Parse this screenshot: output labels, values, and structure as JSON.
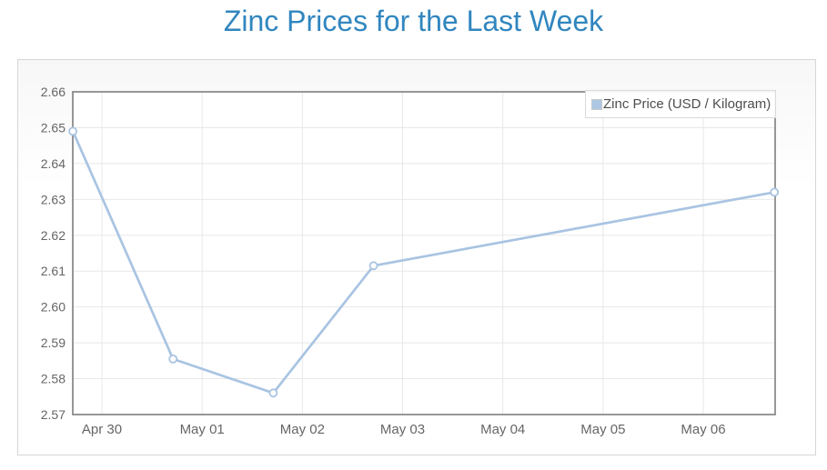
{
  "page": {
    "title": "Zinc Prices for the Last Week"
  },
  "legend": {
    "label": "Zinc Price (USD / Kilogram)"
  },
  "colors": {
    "title_text": "#3186bf",
    "series_line": "#a9c4e2",
    "marker_fill": "#ffffff",
    "marker_stroke": "#a9c4e2",
    "legend_swatch_fill": "#adc8e4",
    "legend_swatch_border": "#c9c9c9",
    "axis_border": "#7d7d7d",
    "gridline": "#e8e8e8",
    "axis_label_text": "#666666",
    "legend_text": "#4d4d4d",
    "panel_border": "#d6d6d6",
    "plot_background": "#ffffff"
  },
  "chart_data": {
    "type": "line",
    "title": "Zinc Prices for the Last Week",
    "xlabel": "",
    "ylabel": "",
    "ylim": [
      2.57,
      2.66
    ],
    "y_tick_step": 0.01,
    "y_tick_labels": [
      "2.66",
      "2.65",
      "2.64",
      "2.63",
      "2.62",
      "2.61",
      "2.60",
      "2.59",
      "2.58",
      "2.57"
    ],
    "x_tick_labels": [
      "Apr 30",
      "May 01",
      "May 02",
      "May 03",
      "May 04",
      "May 05",
      "May 06"
    ],
    "grid": true,
    "legend_position": "top-right",
    "series": [
      {
        "name": "Zinc Price (USD / Kilogram)",
        "points": [
          {
            "x_days_from_apr30_tick": -0.29,
            "value": 2.649
          },
          {
            "x_days_from_apr30_tick": 0.71,
            "value": 2.5855
          },
          {
            "x_days_from_apr30_tick": 1.71,
            "value": 2.576
          },
          {
            "x_days_from_apr30_tick": 2.71,
            "value": 2.6115
          },
          {
            "x_days_from_apr30_tick": 6.71,
            "value": 2.632
          }
        ]
      }
    ]
  }
}
